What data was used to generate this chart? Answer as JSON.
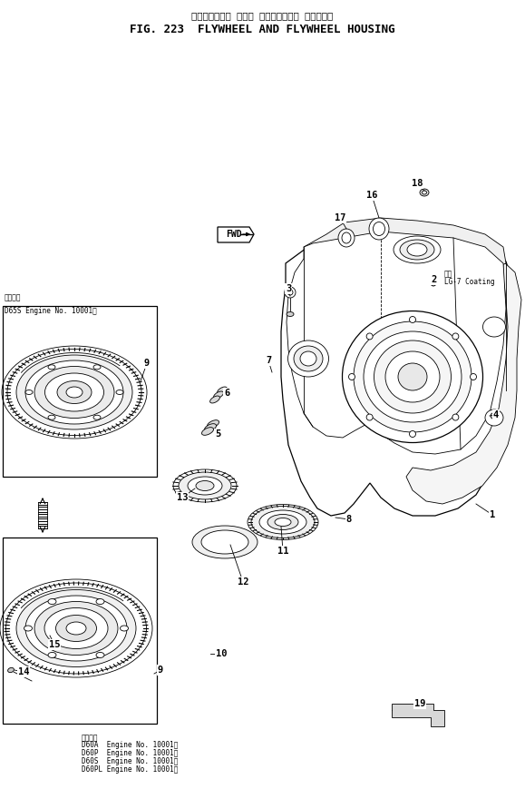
{
  "title_japanese": "フライホイール および フライホイール ハウジング",
  "title_english": "FIG. 223  FLYWHEEL AND FLYWHEEL HOUSING",
  "bg": "#ffffff",
  "lc": "#000000",
  "note_d65s_line1": "適用号機",
  "note_d65s_line2": "D65S Engine No. 10001～",
  "note_d60_line1": "適用号機",
  "note_d60_lines": [
    "D60A  Engine No. 10001～",
    "D60P  Engine No. 10001～",
    "D60S  Engine No. 10001～",
    "D60PL Engine No. 10001～"
  ],
  "note_lg7_line1": "塗布",
  "note_lg7_line2": "LG-7 Coating",
  "note_fwd": "FWD",
  "part_labels": [
    [
      "1",
      543,
      565
    ],
    [
      "2",
      476,
      310
    ],
    [
      "3",
      318,
      317
    ],
    [
      "4",
      547,
      455
    ],
    [
      "5",
      240,
      477
    ],
    [
      "6",
      249,
      435
    ],
    [
      "7",
      297,
      395
    ],
    [
      "8",
      385,
      570
    ],
    [
      "9",
      163,
      398
    ],
    [
      "9",
      177,
      737
    ],
    [
      "10",
      243,
      720
    ],
    [
      "11",
      311,
      606
    ],
    [
      "12",
      268,
      640
    ],
    [
      "13",
      200,
      548
    ],
    [
      "14",
      27,
      738
    ],
    [
      "15",
      60,
      710
    ],
    [
      "16",
      410,
      215
    ],
    [
      "17",
      375,
      240
    ],
    [
      "18",
      460,
      200
    ],
    [
      "19",
      463,
      773
    ]
  ]
}
